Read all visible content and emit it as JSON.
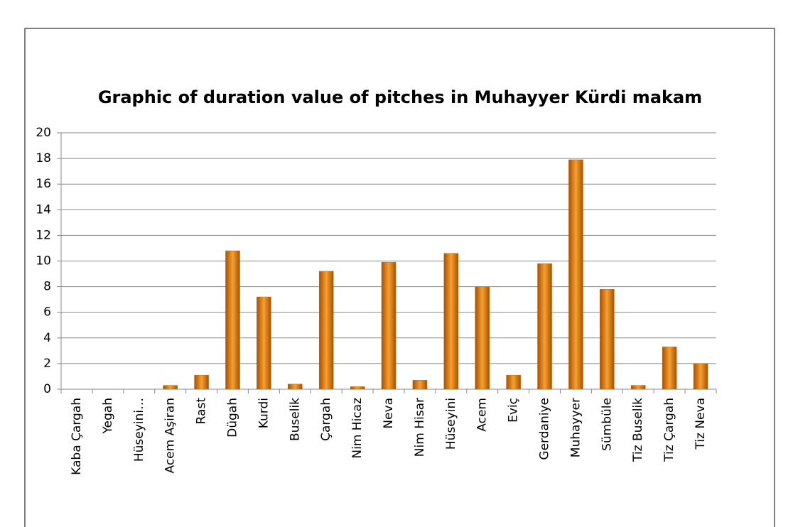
{
  "chart_data": {
    "type": "bar",
    "title": "Graphic of duration value of pitches in Muhayyer Kürdi makam",
    "categories": [
      "Kaba Çargah",
      "Yegah",
      "Hüseyini…",
      "Acem Aşiran",
      "Rast",
      "Dügah",
      "Kurdi",
      "Buselik",
      "Çargah",
      "Nim Hicaz",
      "Neva",
      "Nim Hisar",
      "Hüseyini",
      "Acem",
      "Eviç",
      "Gerdaniye",
      "Muhayyer",
      "Sümbüle",
      "Tiz Buselik",
      "Tiz Çargah",
      "Tiz Neva"
    ],
    "values": [
      0,
      0,
      0,
      0.3,
      1.1,
      10.8,
      7.2,
      0.4,
      9.2,
      0.2,
      9.9,
      0.7,
      10.6,
      8.0,
      1.1,
      9.8,
      17.9,
      7.8,
      0.3,
      3.3,
      2.0
    ],
    "color": "#f7a030",
    "ylim": [
      0,
      20
    ],
    "yticks": [
      0,
      2,
      4,
      6,
      8,
      10,
      12,
      14,
      16,
      18,
      20
    ],
    "grid": true
  }
}
